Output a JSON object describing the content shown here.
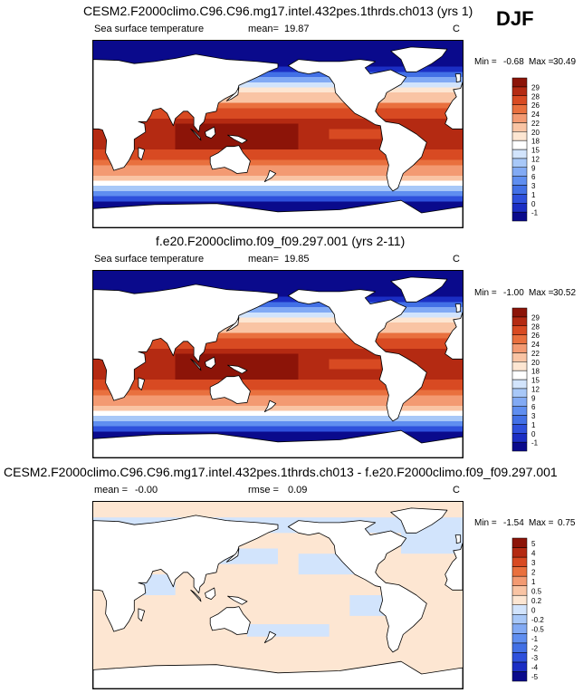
{
  "season": "DJF",
  "chart_data": [
    {
      "type": "heatmap",
      "title": "CESM2.F2000climo.C96.C96.mg17.intel.432pes.1thrds.ch013 (yrs 1)",
      "variable": "Sea surface temperature",
      "mean_label": "mean=",
      "mean": "19.87",
      "units": "C",
      "min_label": "Min =",
      "min": "-0.68",
      "max_label": "Max =",
      "max": "30.49",
      "colorbar_levels": [
        "-1",
        "0",
        "1",
        "3",
        "6",
        "9",
        "12",
        "15",
        "18",
        "20",
        "22",
        "24",
        "26",
        "28",
        "29"
      ]
    },
    {
      "type": "heatmap",
      "title": "f.e20.F2000climo.f09_f09.297.001 (yrs 2-11)",
      "variable": "Sea surface temperature",
      "mean_label": "mean=",
      "mean": "19.85",
      "units": "C",
      "min_label": "Min =",
      "min": "-1.00",
      "max_label": "Max =",
      "max": "30.52",
      "colorbar_levels": [
        "-1",
        "0",
        "1",
        "3",
        "6",
        "9",
        "12",
        "15",
        "18",
        "20",
        "22",
        "24",
        "26",
        "28",
        "29"
      ]
    },
    {
      "type": "heatmap",
      "title": "CESM2.F2000climo.C96.C96.mg17.intel.432pes.1thrds.ch013 - f.e20.F2000climo.f09_f09.297.001",
      "mean_label": "mean =",
      "mean": "-0.00",
      "rmse_label": "rmse =",
      "rmse": "0.09",
      "units": "C",
      "min_label": "Min =",
      "min": "-1.54",
      "max_label": "Max =",
      "max": "0.75",
      "colorbar_levels": [
        "-5",
        "-4",
        "-3",
        "-2",
        "-1",
        "-0.5",
        "-0.2",
        "0",
        "0.2",
        "0.5",
        "1",
        "2",
        "3",
        "4",
        "5"
      ]
    }
  ],
  "colors": {
    "sst_scale": [
      "#0a0a8c",
      "#1b2ec4",
      "#2e50dc",
      "#4270e6",
      "#5f8ef0",
      "#82aaf4",
      "#a8c8f8",
      "#d2e4fc",
      "#ffffff",
      "#fde6d2",
      "#f9c4a4",
      "#f39a72",
      "#e9703e",
      "#d84a22",
      "#b42a12",
      "#8c1408"
    ],
    "diff_scale": [
      "#0a0a8c",
      "#1b2ec4",
      "#2e50dc",
      "#4270e6",
      "#5f8ef0",
      "#82aaf4",
      "#a8c8f8",
      "#d2e4fc",
      "#fde6d2",
      "#f9c4a4",
      "#f39a72",
      "#e9703e",
      "#d84a22",
      "#b42a12",
      "#8c1408"
    ]
  }
}
